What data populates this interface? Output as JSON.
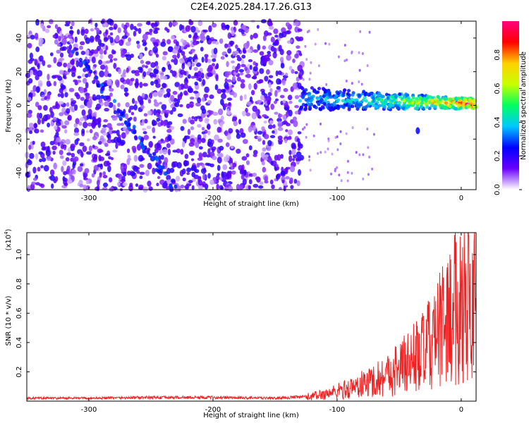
{
  "title": "C2E4.2025.284.17.26.G13",
  "chart_data": [
    {
      "type": "heatmap",
      "title": "C2E4.2025.284.17.26.G13",
      "xlabel": "Height of straight line (km)",
      "ylabel": "Frequency (Hz)",
      "xlim": [
        -350,
        12
      ],
      "ylim": [
        -50,
        50
      ],
      "xticks": [
        -300,
        -200,
        -100,
        0
      ],
      "yticks": [
        -40,
        -20,
        0,
        20,
        40
      ],
      "colorbar": {
        "label": "Normalized spectral amplitude",
        "range": [
          0,
          1
        ],
        "ticks": [
          "0.0",
          "0.2",
          "0.4",
          "0.6",
          "0.8"
        ],
        "colors": [
          "#ffffff",
          "#6a00ff",
          "#0000ff",
          "#00c8ff",
          "#00ff60",
          "#c8ff00",
          "#ffd000",
          "#ff0000",
          "#ff0080"
        ]
      },
      "features": [
        {
          "name": "broadband noise",
          "x_range": [
            -350,
            -128
          ],
          "y_range": [
            -50,
            50
          ],
          "amplitude": 0.15
        },
        {
          "name": "diagonal streak",
          "from": [
            -315,
            35
          ],
          "to": [
            -230,
            -50
          ],
          "amplitude": 0.25
        },
        {
          "name": "signal band",
          "x_range": [
            -130,
            12
          ],
          "center_hz": [
            4,
            1
          ],
          "amplitude_start": 0.35,
          "amplitude_end": 0.9
        }
      ]
    },
    {
      "type": "line",
      "xlabel": "Height of straight line (km)",
      "ylabel": "SNR (10 * v/v)",
      "exponent_label": "(x10",
      "exponent_power": "4",
      "exponent_close": ")",
      "xlim": [
        -350,
        12
      ],
      "ylim": [
        0,
        1.15
      ],
      "xticks": [
        -300,
        -200,
        -100,
        0
      ],
      "yticks": [
        0.2,
        0.4,
        0.6,
        0.8,
        1.0
      ],
      "ytick_labels": [
        "0.2",
        "0.4",
        "0.6",
        "0.8",
        "1.0"
      ],
      "series": [
        {
          "name": "SNR",
          "color": "#ee2222",
          "x": [
            -350,
            -300,
            -250,
            -200,
            -150,
            -125,
            -110,
            -100,
            -90,
            -80,
            -70,
            -60,
            -50,
            -40,
            -30,
            -20,
            -15,
            -10,
            -5,
            0,
            5,
            10,
            12
          ],
          "y": [
            0.02,
            0.02,
            0.025,
            0.025,
            0.02,
            0.03,
            0.05,
            0.07,
            0.09,
            0.12,
            0.15,
            0.19,
            0.24,
            0.3,
            0.36,
            0.45,
            0.55,
            0.6,
            0.68,
            0.72,
            0.8,
            0.78,
            0.75
          ]
        }
      ]
    }
  ]
}
